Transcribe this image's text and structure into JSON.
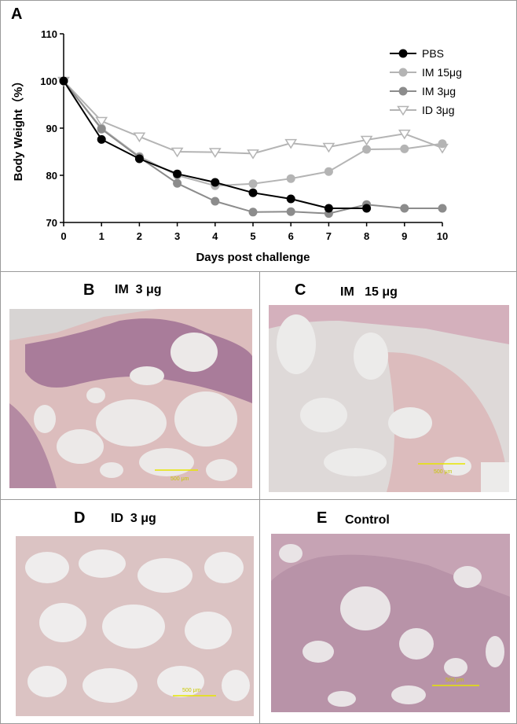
{
  "panel_a": {
    "letter": "A",
    "chart_data": {
      "type": "line",
      "xlabel": "Days post challenge",
      "ylabel": "Body Weight（%）",
      "xlim": [
        0,
        10
      ],
      "ylim": [
        70,
        110
      ],
      "xticks": [
        "0",
        "1",
        "2",
        "3",
        "4",
        "5",
        "6",
        "7",
        "8",
        "9",
        "10"
      ],
      "yticks": [
        "70",
        "80",
        "90",
        "100",
        "110"
      ],
      "legend_position": "top-right",
      "series": [
        {
          "name": "PBS",
          "color": "#000000",
          "marker": "circle",
          "x": [
            0,
            1,
            2,
            3,
            4,
            5,
            6,
            7,
            8
          ],
          "y": [
            100,
            87.6,
            83.5,
            80.3,
            78.5,
            76.3,
            75.0,
            73.0,
            73.0
          ]
        },
        {
          "name": "IM 15μg",
          "color": "#b4b4b4",
          "marker": "circle",
          "x": [
            0,
            1,
            2,
            3,
            4,
            5,
            6,
            7,
            8,
            9,
            10
          ],
          "y": [
            100,
            90.0,
            84.0,
            80.0,
            77.8,
            78.2,
            79.3,
            80.8,
            85.5,
            85.6,
            86.7
          ]
        },
        {
          "name": "IM 3μg",
          "color": "#8c8c8c",
          "marker": "circle",
          "x": [
            0,
            1,
            2,
            3,
            4,
            5,
            6,
            7,
            8,
            9,
            10
          ],
          "y": [
            100,
            89.8,
            83.8,
            78.3,
            74.5,
            72.2,
            72.3,
            71.9,
            73.8,
            73.0,
            73.0
          ]
        },
        {
          "name": "ID 3μg",
          "color": "#b4b4b4",
          "marker": "triangle-down",
          "x": [
            0,
            1,
            2,
            3,
            4,
            5,
            6,
            7,
            8,
            9,
            10
          ],
          "y": [
            100,
            91.5,
            88.2,
            85.0,
            84.9,
            84.6,
            86.8,
            86.0,
            87.5,
            88.8,
            85.8
          ]
        }
      ]
    }
  },
  "panel_b": {
    "letter": "B",
    "title": "IM  3 μg",
    "scale": "500 μm"
  },
  "panel_c": {
    "letter": "C",
    "title": "IM   15 μg",
    "scale": "500 μm"
  },
  "panel_d": {
    "letter": "D",
    "title": "ID  3 μg",
    "scale": "500 μm"
  },
  "panel_e": {
    "letter": "E",
    "title": "Control",
    "scale": "500 μm"
  }
}
